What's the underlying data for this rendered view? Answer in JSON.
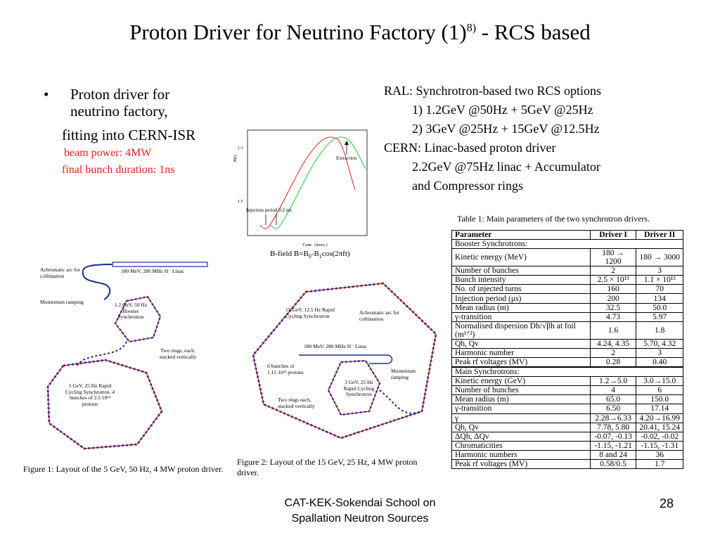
{
  "title": {
    "main": "Proton Driver for Neutrino Factory (1)",
    "sup": "8)",
    "suffix": " - RCS based"
  },
  "left": {
    "bullet": "•",
    "line1": "Proton driver for neutrino factory,",
    "line2": "fitting into CERN-ISR",
    "red1": "beam power: 4MW",
    "red2": "final bunch duration: 1ns"
  },
  "right": {
    "l1": "RAL: Synchrotron-based two RCS options",
    "l2": "1) 1.2GeV @50Hz + 5GeV @25Hz",
    "l3": "2) 3GeV @25Hz + 15GeV @12.5Hz",
    "l4": "CERN: Linac-based proton driver",
    "l5": "2.2GeV @75Hz linac + Accumulator",
    "l6": "and Compressor rings"
  },
  "plot": {
    "extraction": "Extraction",
    "injection": "Injection period 0.2 ms",
    "xlabel": "Time (msec)",
    "caption": "B-field B=B",
    "caption_sub0": "0",
    "caption_mid": "-B",
    "caption_sub1": "1",
    "caption_end": "cos(2πft)",
    "colors": {
      "red": "#e8201c",
      "green": "#22c43a"
    }
  },
  "fig1": {
    "achromatic": "Achromatic arc for collimation",
    "linac": "180 MeV, 280 MHz H⁻ Linac",
    "ramping": "Momentum ramping",
    "booster": "1.2 GeV, 50 Hz Booster Synchrotron",
    "two_rings": "Two rings, each, stacked vertically",
    "main": "5 GeV, 25 Hz Rapid Cycling Synchrotron. 4 bunches of 2.5 10¹³ protons",
    "caption": "Figure 1: Layout of the 5 GeV, 50 Hz, 4 MW proton driver."
  },
  "fig2": {
    "rcs15": "15 GeV, 12.5 Hz Rapid Cycling Synchrotron",
    "achromatic": "Achromatic arc for collimation",
    "linac": "180 MeV, 280 MHz H⁻ Linac",
    "bunches": "6 bunches of 1.11·10¹³ protons",
    "ramping": "Momentum ramping",
    "rcs3": "3 GeV, 25 Hz Rapid Cycling Synchrotron",
    "two_rings": "Two rings each, stacked vertically",
    "caption": "Figure 2: Layout of the 15 GeV, 25 Hz, 4 MW proton driver."
  },
  "table": {
    "title": "Table 1: Main parameters of the two synchrotron drivers.",
    "headers": [
      "Parameter",
      "Driver I",
      "Driver II"
    ],
    "booster_label": "Booster Synchrotrons:",
    "booster_rows": [
      [
        "Kinetic energy (MeV)",
        "180 → 1200",
        "180 → 3000"
      ],
      [
        "Number of bunches",
        "2",
        "3"
      ],
      [
        "Bunch intensity",
        "2.5 × 10¹³",
        "1.1 × 10¹³"
      ],
      [
        "No. of injected turns",
        "160",
        "70"
      ],
      [
        "Injection period (μs)",
        "200",
        "134"
      ],
      [
        "Mean radius (m)",
        "32.5",
        "50.0"
      ],
      [
        "γ-transition",
        "4.73",
        "5.97"
      ],
      [
        "Normalised dispersion Dh/√βh at foil (m¹ᐟ²)",
        "1.6",
        "1.8"
      ],
      [
        "Qh, Qv",
        "4.24, 4.35",
        "5.70, 4.32"
      ],
      [
        "Harmonic number",
        "2",
        "3"
      ],
      [
        "Peak rf voltages (MV)",
        "0.28",
        "0.40"
      ]
    ],
    "main_label": "Main Synchrotrons:",
    "main_rows": [
      [
        "Kinetic energy (GeV)",
        "1.2→5.0",
        "3.0→15.0"
      ],
      [
        "Number of bunches",
        "4",
        "6"
      ],
      [
        "Mean radius (m)",
        "65.0",
        "150.0"
      ],
      [
        "γ-transition",
        "6.50",
        "17.14"
      ],
      [
        "γ",
        "2.28→6.33",
        "4.20→16.99"
      ],
      [
        "Qh, Qv",
        "7.78, 5.80",
        "20.41, 15.24"
      ],
      [
        "ΔQh, ΔQv",
        "-0.07, -0.13",
        "-0.02, -0.02"
      ],
      [
        "Chromaticities",
        "-1.15, -1.21",
        "-1.15, -1.31"
      ],
      [
        "Harmonic numbers",
        "8 and 24",
        "36"
      ],
      [
        "Peak rf voltages (MV)",
        "0.58/0.5",
        "1.7"
      ]
    ]
  },
  "footer": {
    "line1": "CAT-KEK-Sokendai School on",
    "line2": "Spallation Neutron Sources",
    "page": "28"
  }
}
